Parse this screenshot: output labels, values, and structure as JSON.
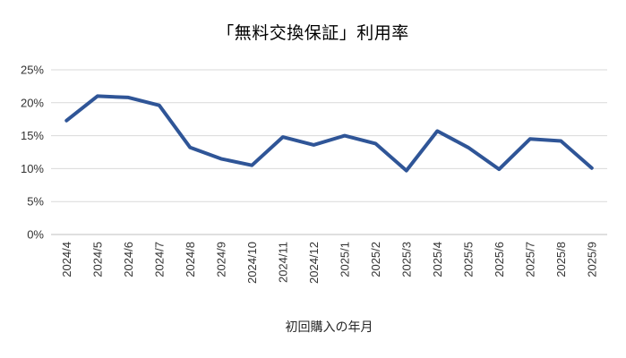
{
  "chart": {
    "title": "「無料交換保証」利用率",
    "x_axis_title": "初回購入の年月"
  },
  "chart_data": {
    "type": "line",
    "title": "「無料交換保証」利用率",
    "xlabel": "初回購入の年月",
    "ylabel": "",
    "categories": [
      "2024/4",
      "2024/5",
      "2024/6",
      "2024/7",
      "2024/8",
      "2024/9",
      "2024/10",
      "2024/11",
      "2024/12",
      "2025/1",
      "2025/2",
      "2025/3",
      "2025/4",
      "2025/5",
      "2025/6",
      "2025/7",
      "2025/8",
      "2025/9"
    ],
    "series": [
      {
        "name": "利用率",
        "values": [
          17.3,
          21.0,
          20.8,
          19.6,
          13.2,
          11.5,
          10.5,
          14.8,
          13.6,
          15.0,
          13.8,
          9.7,
          15.7,
          13.2,
          9.9,
          14.5,
          14.2,
          10.1
        ]
      }
    ],
    "ylim": [
      0,
      25
    ],
    "ytick_interval": 5,
    "ytick_labels": [
      "0%",
      "5%",
      "10%",
      "15%",
      "20%",
      "25%"
    ],
    "grid": true,
    "legend": "none",
    "colors": {
      "line": "#2F5597",
      "gridline": "#d9d9d9",
      "axis_line": "#bfbfbf",
      "tick_text": "#333333",
      "title_text": "#000000"
    }
  }
}
